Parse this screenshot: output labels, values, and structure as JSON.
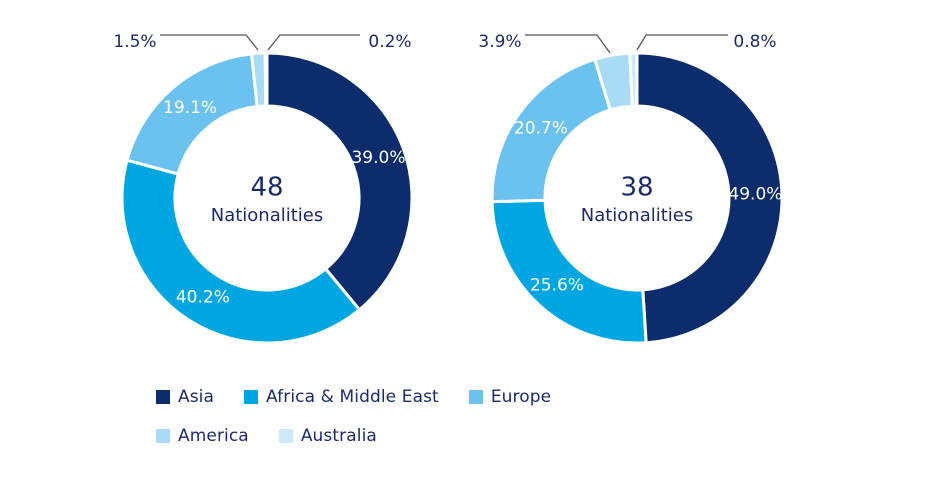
{
  "colors": {
    "Asia": "#0d2c6c",
    "Africa & Middle East": "#00a6e2",
    "Europe": "#6cc2ee",
    "America": "#a9dbf5",
    "Australia": "#cfe9f9",
    "text_dark": "#1c2a6b"
  },
  "chart_data": [
    {
      "type": "pie",
      "center_value": "48",
      "center_label": "Nationalities",
      "categories": [
        "Asia",
        "Africa & Middle East",
        "Europe",
        "America",
        "Australia"
      ],
      "values": [
        39.0,
        40.2,
        19.1,
        1.5,
        0.2
      ],
      "value_labels": [
        "39.0%",
        "40.2%",
        "19.1%",
        "1.5%",
        "0.2%"
      ]
    },
    {
      "type": "pie",
      "center_value": "38",
      "center_label": "Nationalities",
      "categories": [
        "Asia",
        "Africa & Middle East",
        "Europe",
        "America",
        "Australia"
      ],
      "values": [
        49.0,
        25.6,
        20.7,
        3.9,
        0.8
      ],
      "value_labels": [
        "49.0%",
        "25.6%",
        "20.7%",
        "3.9%",
        "0.8%"
      ]
    }
  ],
  "legend": {
    "rows": [
      [
        "Asia",
        "Africa & Middle East",
        "Europe"
      ],
      [
        "America",
        "Australia"
      ]
    ]
  }
}
